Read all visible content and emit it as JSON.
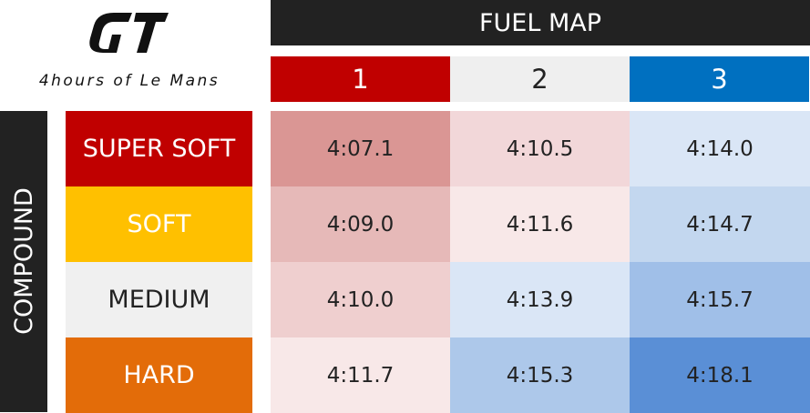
{
  "logo": {
    "icon": "gt-logo-icon"
  },
  "event_title": "4hours of Le Mans",
  "table_title": "FUEL MAP",
  "row_axis_label": "COMPOUND",
  "fuel_maps": [
    {
      "label": "1",
      "color": "#c00000",
      "text_color": "#ffffff"
    },
    {
      "label": "2",
      "color": "#efefef",
      "text_color": "#222222"
    },
    {
      "label": "3",
      "color": "#0070c0",
      "text_color": "#ffffff"
    }
  ],
  "compounds": [
    {
      "label": "SUPER SOFT",
      "color": "#c00000",
      "text_color": "#ffffff"
    },
    {
      "label": "SOFT",
      "color": "#ffc000",
      "text_color": "#ffffff"
    },
    {
      "label": "MEDIUM",
      "color": "#f0f0f0",
      "text_color": "#222222"
    },
    {
      "label": "HARD",
      "color": "#e36c09",
      "text_color": "#ffffff"
    }
  ],
  "chart_data": {
    "type": "heatmap",
    "title": "FUEL MAP",
    "ylabel": "COMPOUND",
    "x": [
      "1",
      "2",
      "3"
    ],
    "y": [
      "SUPER SOFT",
      "SOFT",
      "MEDIUM",
      "HARD"
    ],
    "values": [
      [
        "4:07.1",
        "4:10.5",
        "4:14.0"
      ],
      [
        "4:09.0",
        "4:11.6",
        "4:14.7"
      ],
      [
        "4:10.0",
        "4:13.9",
        "4:15.7"
      ],
      [
        "4:11.7",
        "4:15.3",
        "4:18.1"
      ]
    ],
    "cell_colors": [
      [
        "#da9694",
        "#f2d7d9",
        "#dae6f6"
      ],
      [
        "#e6b9b8",
        "#f8e8e8",
        "#c3d7ef"
      ],
      [
        "#efcfcf",
        "#dae6f6",
        "#a0bfe8"
      ],
      [
        "#f8e8e8",
        "#adc8ea",
        "#5a8fd6"
      ]
    ]
  }
}
